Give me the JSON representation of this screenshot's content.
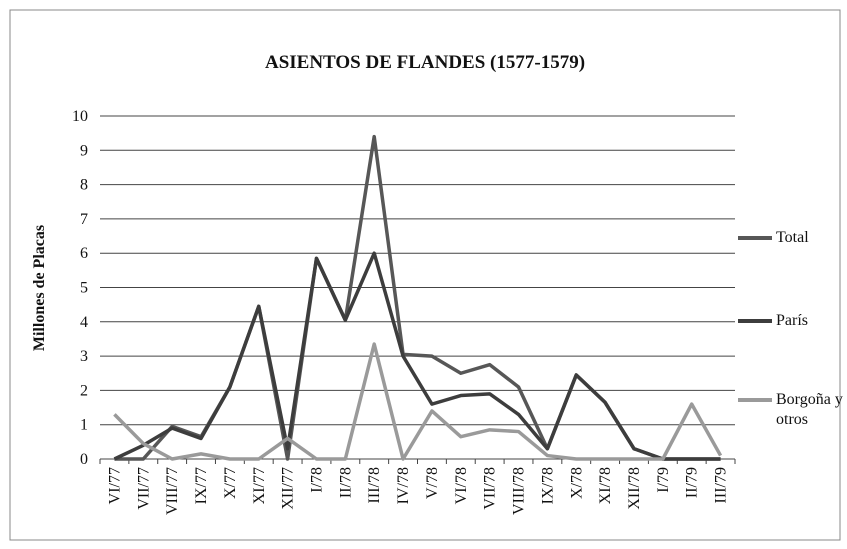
{
  "chart_data": {
    "type": "line",
    "title": "ASIENTOS DE FLANDES (1577-1579)",
    "y_label": "Millones de Placas",
    "categories": [
      "VI/77",
      "VII/77",
      "VIII/77",
      "IX/77",
      "X/77",
      "XI/77",
      "XII/77",
      "I/78",
      "II/78",
      "III/78",
      "IV/78",
      "V/78",
      "VI/78",
      "VII/78",
      "VIII/78",
      "IX/78",
      "X/78",
      "XI/78",
      "XII/78",
      "I/79",
      "II/79",
      "III/79"
    ],
    "series": [
      {
        "name": "Total",
        "color": "#575757",
        "values": [
          0,
          0,
          0.95,
          0.65,
          2.1,
          4.45,
          0,
          5.85,
          4.05,
          9.4,
          3.05,
          3.0,
          2.5,
          2.75,
          2.1,
          0.3,
          2.45,
          1.65,
          0.3,
          0,
          0,
          0
        ]
      },
      {
        "name": "París",
        "color": "#3d3d3d",
        "values": [
          0,
          0.4,
          0.9,
          0.6,
          2.1,
          4.45,
          0.3,
          5.85,
          4.05,
          6.0,
          3.0,
          1.6,
          1.85,
          1.9,
          1.3,
          0.3,
          2.45,
          1.65,
          0.3,
          0,
          0,
          0
        ]
      },
      {
        "name": "Borgoña y otros",
        "color": "#9a9a9a",
        "values": [
          1.3,
          0.45,
          0,
          0.15,
          0,
          0,
          0.6,
          0,
          0,
          3.35,
          0,
          1.4,
          0.65,
          0.85,
          0.8,
          0.1,
          0,
          0,
          0,
          0,
          1.6,
          0.1
        ]
      }
    ],
    "ylim": [
      0,
      10
    ],
    "yticks": [
      0,
      1,
      2,
      3,
      4,
      5,
      6,
      7,
      8,
      9,
      10
    ],
    "grid": true
  }
}
